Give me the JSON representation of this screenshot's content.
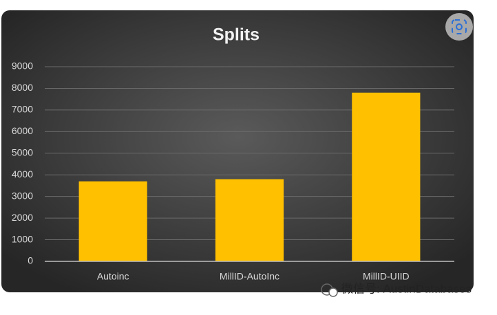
{
  "chart_data": {
    "type": "bar",
    "title": "Splits",
    "categories": [
      "Autoinc",
      "MillID-AutoInc",
      "MillID-UIID"
    ],
    "values": [
      3700,
      3800,
      7800
    ],
    "color": "#ffc000",
    "ylim": [
      0,
      9000
    ],
    "yticks": [
      0,
      1000,
      2000,
      3000,
      4000,
      5000,
      6000,
      7000,
      8000,
      9000
    ],
    "grid": true,
    "watermark": "微信号: AustinDatabases"
  }
}
